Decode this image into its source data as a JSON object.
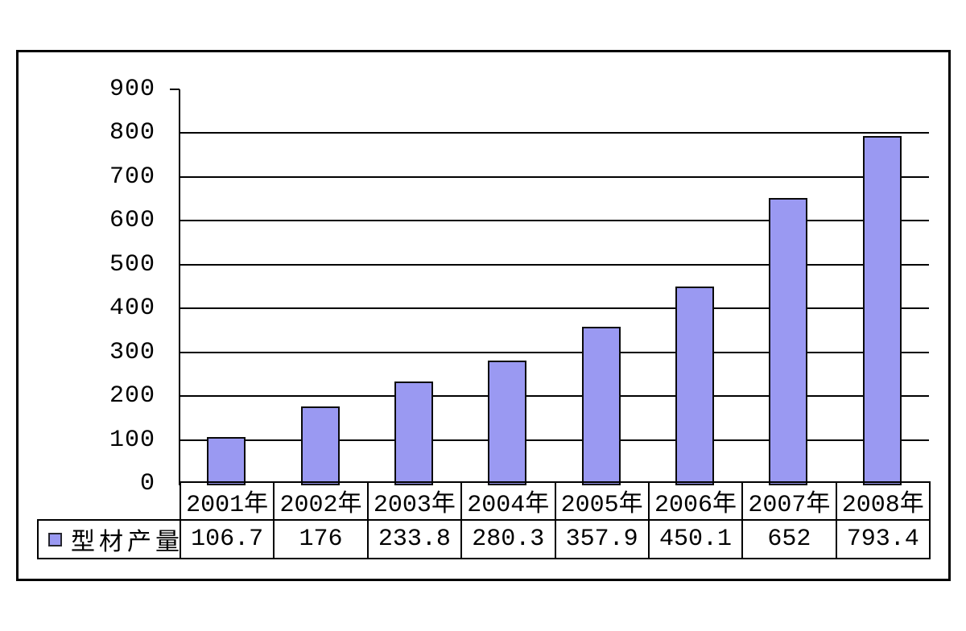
{
  "legend": {
    "label": "型材产量",
    "marker_color": "#9a99f2"
  },
  "chart_data": {
    "type": "bar",
    "title": "",
    "categories": [
      "2001年",
      "2002年",
      "2003年",
      "2004年",
      "2005年",
      "2006年",
      "2007年",
      "2008年"
    ],
    "series": [
      {
        "name": "型材产量",
        "values": [
          106.7,
          176,
          233.8,
          280.3,
          357.9,
          450.1,
          652,
          793.4
        ],
        "display_values": [
          "106.7",
          "176",
          "233.8",
          "280.3",
          "357.9",
          "450.1",
          "652",
          "793.4"
        ]
      }
    ],
    "xlabel": "",
    "ylabel": "",
    "ylim": [
      0,
      900
    ],
    "yticks": [
      0,
      100,
      200,
      300,
      400,
      500,
      600,
      700,
      800,
      900
    ],
    "grid": "horizontal",
    "legend_position": "bottom-left-table",
    "bar_color": "#9a99f2",
    "bar_border_color": "#0a0a0a",
    "axis_color": "#000000",
    "background_color": "#ffffff"
  }
}
